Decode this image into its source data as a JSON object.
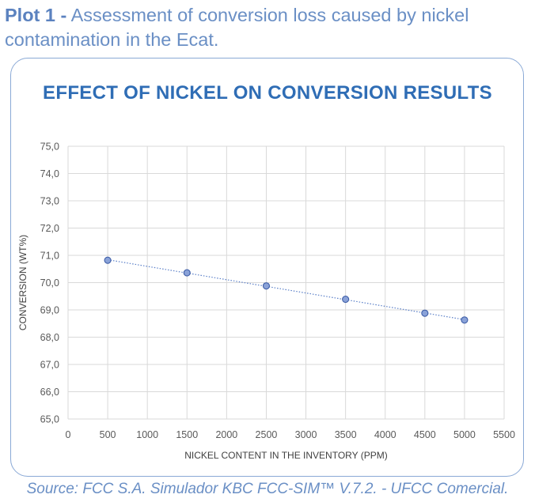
{
  "caption": {
    "bold": "Plot 1 -",
    "text": " Assessment of conversion loss caused by nickel contamination in the Ecat."
  },
  "source": "Source: FCC S.A. Simulador KBC FCC-SIM™  V.7.2. - UFCC Comercial.",
  "colors": {
    "title": "#2f6db5",
    "caption": "#6a8fc5",
    "marker_fill": "#8aa2d8",
    "marker_stroke": "#3f5fa8",
    "trend_line": "#5a7fc8",
    "grid": "#d9d9d9"
  },
  "chart_data": {
    "type": "scatter",
    "title": "EFFECT OF NICKEL ON CONVERSION RESULTS",
    "xlabel": "NICKEL CONTENT IN THE INVENTORY (PPM)",
    "ylabel": "CONVERSION (WT%)",
    "xlim": [
      0,
      5500
    ],
    "ylim": [
      65,
      75
    ],
    "x_ticks": [
      0,
      500,
      1000,
      1500,
      2000,
      2500,
      3000,
      3500,
      4000,
      4500,
      5000,
      5500
    ],
    "x_tick_labels": [
      "0",
      "500",
      "1000",
      "1500",
      "2000",
      "2500",
      "3000",
      "3500",
      "4000",
      "4500",
      "5000",
      "5500"
    ],
    "y_ticks": [
      65,
      66,
      67,
      68,
      69,
      70,
      71,
      72,
      73,
      74,
      75
    ],
    "y_tick_labels": [
      "65,0",
      "66,0",
      "67,0",
      "68,0",
      "69,0",
      "70,0",
      "71,0",
      "72,0",
      "73,0",
      "74,0",
      "75,0"
    ],
    "grid": true,
    "trendline": "dotted",
    "series": [
      {
        "points": [
          {
            "x": 500,
            "y": 70.82
          },
          {
            "x": 1500,
            "y": 70.36
          },
          {
            "x": 2500,
            "y": 69.88
          },
          {
            "x": 3500,
            "y": 69.39
          },
          {
            "x": 4500,
            "y": 68.88
          },
          {
            "x": 5000,
            "y": 68.63
          }
        ]
      }
    ]
  }
}
